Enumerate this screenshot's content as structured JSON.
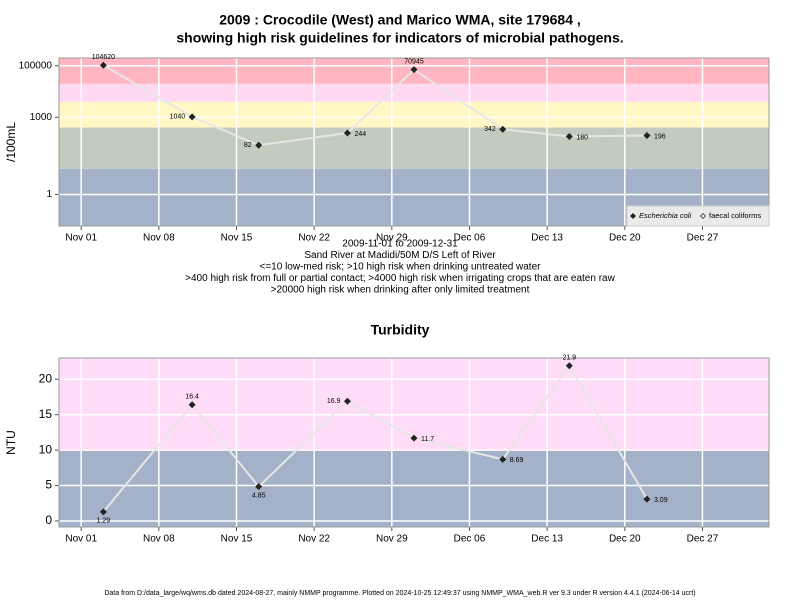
{
  "chart_data": [
    {
      "type": "line",
      "title": [
        "2009 : Crocodile (West) and Marico WMA, site 179684 ,",
        "showing high risk guidelines for indicators of microbial pathogens."
      ],
      "subtitle": [
        "2009-11-01 to 2009-12-31",
        "Sand River at Madidi/50M D/S Left of River",
        "<=10 low-med risk; >10 high risk when drinking untreated water",
        ">400 high risk from full or partial contact; >4000 high risk when irrigating crops that are eaten raw",
        ">20000 high risk when drinking after only limited treatment"
      ],
      "ylabel": "/100mL",
      "log_y": true,
      "x": [
        "2009-11-03",
        "2009-11-11",
        "2009-11-17",
        "2009-11-25",
        "2009-12-01",
        "2009-12-09",
        "2009-12-15",
        "2009-12-22"
      ],
      "series": [
        {
          "name": "Escherichia coli",
          "color": "#222222",
          "values": [
            104620,
            1040,
            82,
            244,
            70945,
            342,
            180,
            196
          ]
        },
        {
          "name": "faecal coliforms",
          "color": "#222222",
          "values": [
            null,
            null,
            null,
            null,
            null,
            null,
            null,
            null
          ]
        }
      ],
      "xlim": [
        "2009-10-30",
        "2010-01-02"
      ],
      "xticks": [
        {
          "value": "2009-11-01",
          "label": "Nov 01"
        },
        {
          "value": "2009-11-08",
          "label": "Nov 08"
        },
        {
          "value": "2009-11-15",
          "label": "Nov 15"
        },
        {
          "value": "2009-11-22",
          "label": "Nov 22"
        },
        {
          "value": "2009-11-29",
          "label": "Nov 29"
        },
        {
          "value": "2009-12-06",
          "label": "Dec 06"
        },
        {
          "value": "2009-12-13",
          "label": "Dec 13"
        },
        {
          "value": "2009-12-20",
          "label": "Dec 20"
        },
        {
          "value": "2009-12-27",
          "label": "Dec 27"
        }
      ],
      "ylim": [
        0.06,
        200000
      ],
      "yticks": [
        1,
        1000,
        100000
      ],
      "band_breaks": [
        10,
        400,
        4000,
        20000
      ],
      "band_colors": [
        "#a3b2c8",
        "#c2ccbe",
        "#fff8c4",
        "#ffd9f2",
        "#ffb6c1"
      ],
      "grid": true,
      "legend": "bottom-right"
    },
    {
      "type": "line",
      "title": [
        "Turbidity"
      ],
      "ylabel": "NTU",
      "log_y": false,
      "x": [
        "2009-11-03",
        "2009-11-11",
        "2009-11-17",
        "2009-11-25",
        "2009-12-01",
        "2009-12-09",
        "2009-12-15",
        "2009-12-22"
      ],
      "series": [
        {
          "name": "Turbidity",
          "color": "#222222",
          "values": [
            1.29,
            16.4,
            4.85,
            16.9,
            11.7,
            8.69,
            21.9,
            3.09
          ]
        }
      ],
      "xlim": [
        "2009-10-30",
        "2010-01-02"
      ],
      "xticks": [
        {
          "value": "2009-11-01",
          "label": "Nov 01"
        },
        {
          "value": "2009-11-08",
          "label": "Nov 08"
        },
        {
          "value": "2009-11-15",
          "label": "Nov 15"
        },
        {
          "value": "2009-11-22",
          "label": "Nov 22"
        },
        {
          "value": "2009-11-29",
          "label": "Nov 29"
        },
        {
          "value": "2009-12-06",
          "label": "Dec 06"
        },
        {
          "value": "2009-12-13",
          "label": "Dec 13"
        },
        {
          "value": "2009-12-20",
          "label": "Dec 20"
        },
        {
          "value": "2009-12-27",
          "label": "Dec 27"
        }
      ],
      "ylim": [
        -0.85,
        23
      ],
      "yticks": [
        0,
        5,
        10,
        15,
        20
      ],
      "band_breaks": [
        10
      ],
      "band_colors": [
        "#a3b2c8",
        "#ffddf8"
      ],
      "grid": true
    }
  ],
  "footer": "Data from D:/data_large/wq/wms.db dated 2024-08-27, mainly NMMP programme. Plotted on 2024-10-25 12:49:37 using NMMP_WMA_web.R ver 9.3 under R version 4.4.1 (2024-06-14 ucrt)"
}
